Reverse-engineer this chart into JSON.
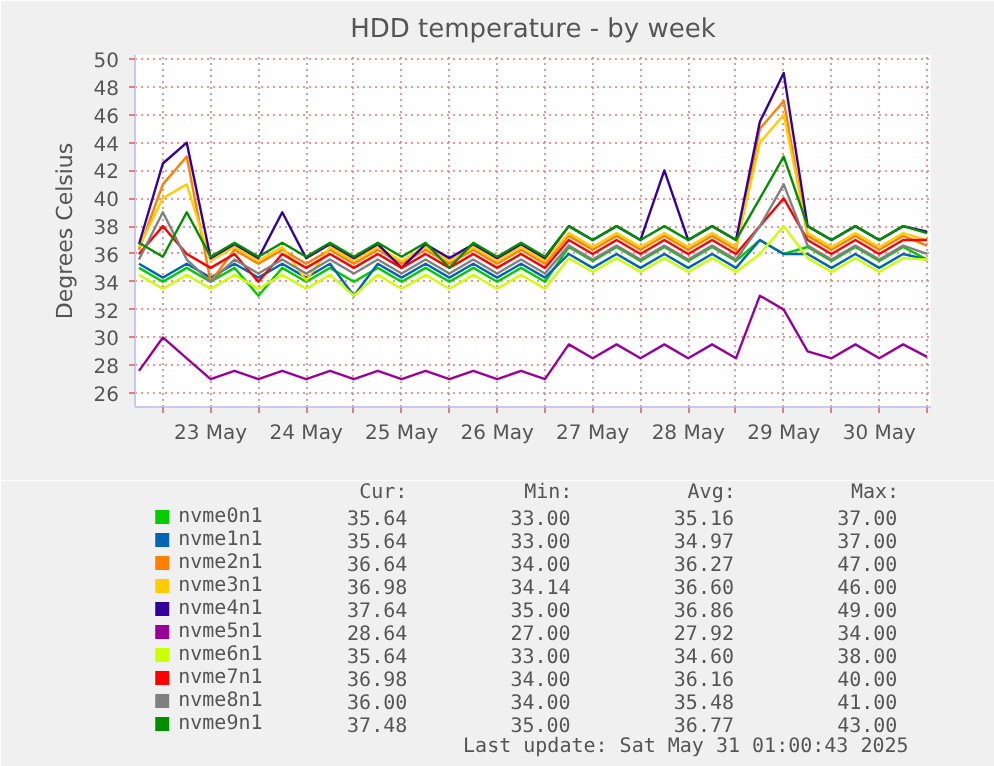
{
  "chart_data": {
    "type": "line",
    "title": "HDD temperature - by week",
    "ylabel": "Degrees Celsius",
    "x": [
      "2025-05-22T18:00",
      "2025-05-23T00:00",
      "2025-05-23T06:00",
      "2025-05-23T12:00",
      "2025-05-23T18:00",
      "2025-05-24T00:00",
      "2025-05-24T06:00",
      "2025-05-24T12:00",
      "2025-05-24T18:00",
      "2025-05-25T00:00",
      "2025-05-25T06:00",
      "2025-05-25T12:00",
      "2025-05-25T18:00",
      "2025-05-26T00:00",
      "2025-05-26T06:00",
      "2025-05-26T12:00",
      "2025-05-26T18:00",
      "2025-05-27T00:00",
      "2025-05-27T06:00",
      "2025-05-27T12:00",
      "2025-05-27T18:00",
      "2025-05-28T00:00",
      "2025-05-28T06:00",
      "2025-05-28T12:00",
      "2025-05-28T18:00",
      "2025-05-29T00:00",
      "2025-05-29T06:00",
      "2025-05-29T12:00",
      "2025-05-29T18:00",
      "2025-05-30T00:00",
      "2025-05-30T06:00",
      "2025-05-30T12:00",
      "2025-05-30T18:00",
      "2025-05-31T00:00"
    ],
    "series": [
      {
        "name": "nvme0n1",
        "color": "#00cc00",
        "values": [
          35,
          34,
          35,
          34,
          35,
          33,
          35,
          34,
          35,
          34,
          35,
          34,
          35,
          34,
          35,
          34,
          35,
          34,
          36.5,
          35.5,
          36.5,
          35.5,
          36.5,
          35.5,
          36.5,
          35.5,
          37,
          36,
          36.5,
          35.5,
          36.5,
          35.5,
          36.5,
          35.6
        ]
      },
      {
        "name": "nvme1n1",
        "color": "#0066b3",
        "values": [
          35.3,
          34.3,
          35.3,
          34.3,
          35.3,
          34.3,
          35.3,
          34.3,
          35.3,
          33,
          35.3,
          34.3,
          35.3,
          34.3,
          35.3,
          34.3,
          35.3,
          34.3,
          36,
          35,
          36,
          35,
          36,
          35,
          36,
          35,
          37,
          36,
          36,
          35,
          36,
          35,
          36,
          35.6
        ]
      },
      {
        "name": "nvme2n1",
        "color": "#ff8000",
        "values": [
          36.3,
          41,
          43,
          34,
          36.3,
          35.3,
          36.3,
          35.3,
          36.3,
          35.3,
          36.3,
          35.3,
          36.3,
          35.3,
          36.3,
          35.3,
          36.3,
          35.3,
          37.3,
          36.3,
          37.3,
          36.3,
          37.3,
          36.3,
          37.3,
          36.3,
          45,
          47,
          37.3,
          36.3,
          37.3,
          36.3,
          37.3,
          36.6
        ]
      },
      {
        "name": "nvme3n1",
        "color": "#ffcc00",
        "values": [
          36.5,
          40,
          41,
          35.5,
          36.5,
          35.5,
          36.5,
          34.1,
          36.5,
          35.5,
          36.5,
          35.5,
          36.5,
          35.5,
          36.5,
          35.5,
          36.5,
          35.5,
          37.5,
          36.5,
          37.5,
          36.5,
          37.5,
          36.5,
          37.5,
          36.5,
          44,
          46,
          37.5,
          36.5,
          37.5,
          36.5,
          37.5,
          37
        ]
      },
      {
        "name": "nvme4n1",
        "color": "#330099",
        "values": [
          36.7,
          42.5,
          44,
          35.7,
          36.7,
          35.7,
          39,
          35.7,
          36.7,
          35.7,
          36.7,
          35,
          36.7,
          35.7,
          36.7,
          35.7,
          36.7,
          35.7,
          38,
          37,
          38,
          37,
          42,
          37,
          38,
          37,
          45.5,
          49,
          38,
          37,
          38,
          37,
          38,
          37.6
        ]
      },
      {
        "name": "nvme5n1",
        "color": "#990099",
        "values": [
          27.6,
          30,
          28.5,
          27,
          27.6,
          27,
          27.6,
          27,
          27.6,
          27,
          27.6,
          27,
          27.6,
          27,
          27.6,
          27,
          27.6,
          27,
          29.5,
          28.5,
          29.5,
          28.5,
          29.5,
          28.5,
          29.5,
          28.5,
          33,
          32,
          29,
          28.5,
          29.5,
          28.5,
          29.5,
          28.6
        ]
      },
      {
        "name": "nvme6n1",
        "color": "#ccff00",
        "values": [
          34.5,
          33.5,
          34.5,
          33.5,
          34.5,
          33.5,
          34.5,
          33.5,
          34.5,
          33,
          34.5,
          33.5,
          34.5,
          33.5,
          34.5,
          33.5,
          34.5,
          33.5,
          35.7,
          34.7,
          35.7,
          34.7,
          35.7,
          34.7,
          35.7,
          34.7,
          36,
          38,
          35.7,
          34.7,
          35.7,
          34.7,
          35.7,
          35.6
        ]
      },
      {
        "name": "nvme7n1",
        "color": "#ff0000",
        "values": [
          36,
          38,
          36,
          35,
          36,
          34,
          36,
          35,
          36,
          35,
          36,
          35,
          36,
          35,
          36,
          35,
          36,
          35,
          37,
          36,
          37,
          36,
          37,
          36,
          37,
          36,
          38,
          40,
          37,
          36,
          37,
          36,
          37,
          37
        ]
      },
      {
        "name": "nvme8n1",
        "color": "#808080",
        "values": [
          35.6,
          39,
          35.6,
          34,
          35.6,
          34.6,
          35.6,
          34.6,
          35.6,
          34.6,
          35.6,
          34.6,
          35.6,
          34.6,
          35.6,
          34.6,
          35.6,
          34.6,
          36.6,
          35.6,
          36.6,
          35.6,
          36.6,
          35.6,
          36.6,
          35.6,
          38,
          41,
          36.6,
          35.6,
          36.6,
          35.6,
          36.6,
          36
        ]
      },
      {
        "name": "nvme9n1",
        "color": "#008f00",
        "values": [
          36.8,
          35.8,
          39,
          35.8,
          36.8,
          35.8,
          36.8,
          35.8,
          36.8,
          35.8,
          36.8,
          35.8,
          36.8,
          35,
          36.8,
          35.8,
          36.8,
          35.8,
          38,
          37,
          38,
          37,
          38,
          37,
          38,
          37,
          40,
          43,
          38,
          37,
          38,
          37,
          38,
          37.5
        ]
      }
    ],
    "xlim": [
      "2025-05-22T17:00",
      "2025-05-31T01:00"
    ],
    "xticks": [
      {
        "value": "2025-05-23T00:00",
        "label": null
      },
      {
        "value": "2025-05-23T12:00",
        "label": "23 May"
      },
      {
        "value": "2025-05-24T00:00",
        "label": null
      },
      {
        "value": "2025-05-24T12:00",
        "label": "24 May"
      },
      {
        "value": "2025-05-25T00:00",
        "label": null
      },
      {
        "value": "2025-05-25T12:00",
        "label": "25 May"
      },
      {
        "value": "2025-05-26T00:00",
        "label": null
      },
      {
        "value": "2025-05-26T12:00",
        "label": "26 May"
      },
      {
        "value": "2025-05-27T00:00",
        "label": null
      },
      {
        "value": "2025-05-27T12:00",
        "label": "27 May"
      },
      {
        "value": "2025-05-28T00:00",
        "label": null
      },
      {
        "value": "2025-05-28T12:00",
        "label": "28 May"
      },
      {
        "value": "2025-05-29T00:00",
        "label": null
      },
      {
        "value": "2025-05-29T12:00",
        "label": "29 May"
      },
      {
        "value": "2025-05-30T00:00",
        "label": null
      },
      {
        "value": "2025-05-30T12:00",
        "label": "30 May"
      },
      {
        "value": "2025-05-31T00:00",
        "label": null
      }
    ],
    "ylim": [
      25,
      50.3
    ],
    "yticks": [
      26,
      28,
      30,
      32,
      34,
      36,
      38,
      40,
      42,
      44,
      46,
      48,
      50
    ],
    "grid": true,
    "legend": "bottom",
    "line_style": "solid",
    "marker": "none",
    "annotations": [
      "Cur:",
      "Min:",
      "Avg:",
      "Max:",
      "35.64",
      "33.00",
      "35.16",
      "37.00",
      "35.64",
      "33.00",
      "34.97",
      "37.00",
      "36.64",
      "34.00",
      "36.27",
      "47.00",
      "36.98",
      "34.14",
      "36.60",
      "46.00",
      "37.64",
      "35.00",
      "36.86",
      "49.00",
      "28.64",
      "27.00",
      "27.92",
      "34.00",
      "35.64",
      "33.00",
      "34.60",
      "38.00",
      "36.98",
      "34.00",
      "36.16",
      "40.00",
      "36.00",
      "34.00",
      "35.48",
      "41.00",
      "37.48",
      "35.00",
      "36.77",
      "43.00",
      "Last update: Sat May 31 01:00:43 2025"
    ]
  }
}
